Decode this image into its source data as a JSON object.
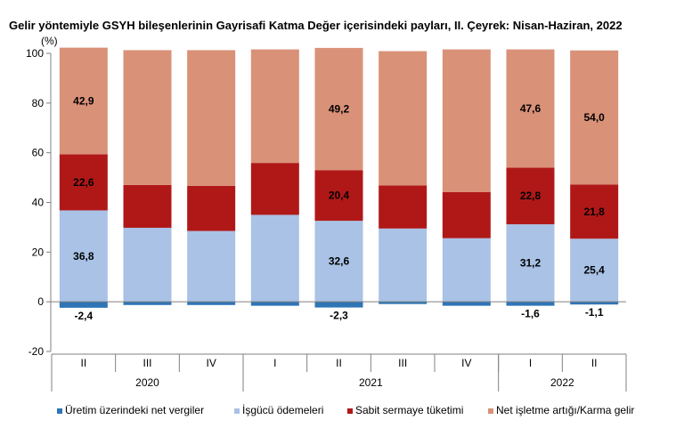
{
  "chart_data": {
    "type": "bar",
    "stacked": true,
    "title": "Gelir yöntemiyle GSYH bileşenlerinin Gayrisafi Katma Değer içerisindeki payları, II. Çeyrek: Nisan-Haziran, 2022",
    "ylabel": "(%)",
    "ylim": [
      -20,
      100
    ],
    "yticks": [
      -20,
      0,
      20,
      40,
      60,
      80,
      100
    ],
    "categories": [
      "II",
      "III",
      "IV",
      "I",
      "II",
      "III",
      "IV",
      "I",
      "II"
    ],
    "groups": [
      {
        "label": "2020",
        "count": 3
      },
      {
        "label": "2021",
        "count": 4
      },
      {
        "label": "2022",
        "count": 2
      }
    ],
    "series": [
      {
        "name": "Üretim üzerindeki net vergiler",
        "color": "#2e75b6",
        "values": [
          -2.4,
          -1.3,
          -1.3,
          -1.6,
          -2.3,
          -0.9,
          -1.6,
          -1.6,
          -1.1
        ],
        "labels": [
          "-2,4",
          "",
          "",
          "",
          "-2,3",
          "",
          "",
          "-1,6",
          "-1,1"
        ]
      },
      {
        "name": "İşgücü ödemeleri",
        "color": "#a9c2e6",
        "values": [
          36.8,
          29.8,
          28.5,
          35.0,
          32.6,
          29.5,
          25.6,
          31.2,
          25.4
        ],
        "labels": [
          "36,8",
          "",
          "",
          "",
          "32,6",
          "",
          "",
          "31,2",
          "25,4"
        ]
      },
      {
        "name": "Sabit sermaye tüketimi",
        "color": "#b01818",
        "values": [
          22.6,
          17.2,
          18.2,
          20.9,
          20.4,
          17.3,
          18.6,
          22.8,
          21.8
        ],
        "labels": [
          "22,6",
          "",
          "",
          "",
          "20,4",
          "",
          "",
          "22,8",
          "21,8"
        ]
      },
      {
        "name": "Net işletme artığı/Karma gelir",
        "color": "#d99178",
        "values": [
          42.9,
          54.3,
          54.6,
          45.7,
          49.2,
          54.1,
          57.4,
          47.6,
          54.0
        ],
        "labels": [
          "42,9",
          "",
          "",
          "",
          "49,2",
          "",
          "",
          "47,6",
          "54,0"
        ]
      }
    ],
    "legend_position": "bottom",
    "grid": false
  }
}
